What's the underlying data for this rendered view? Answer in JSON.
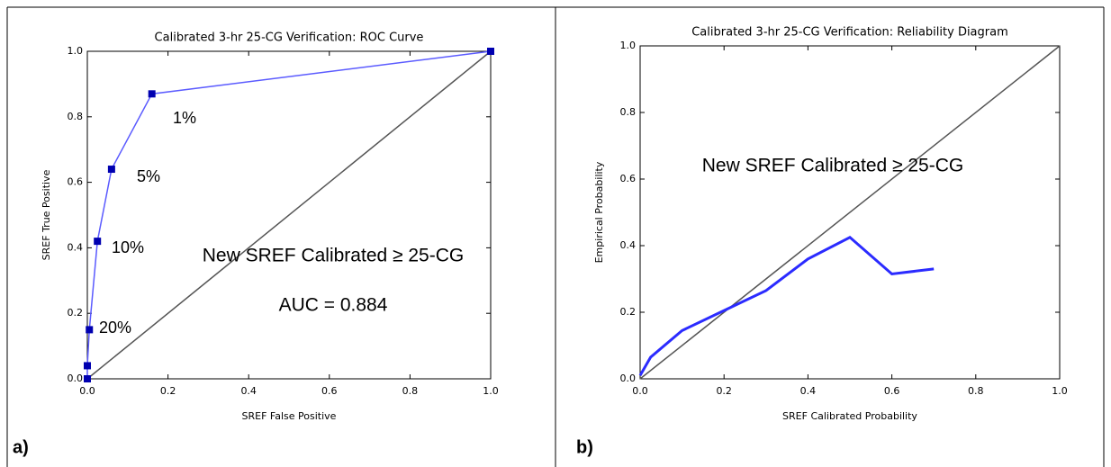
{
  "chart_data": [
    {
      "type": "line",
      "title": "Calibrated 3-hr 25-CG Verification: ROC Curve",
      "xlabel": "SREF False Positive",
      "ylabel": "SREF True Positive",
      "x": [
        0,
        0.0,
        0.005,
        0.025,
        0.06,
        0.16,
        1
      ],
      "values": [
        0,
        0.04,
        0.15,
        0.42,
        0.64,
        0.87,
        1
      ],
      "point_labels": [
        null,
        null,
        "20%",
        "10%",
        "5%",
        "1%",
        null
      ],
      "color": "#5b5bff",
      "marker_color": "#0000b0",
      "marker": "square",
      "diagonal": true,
      "xlim": [
        0,
        1
      ],
      "ylim": [
        0,
        1
      ],
      "xticks": [
        {
          "value": 0,
          "label": "0.0"
        },
        0.2,
        0.4,
        0.6,
        0.8,
        {
          "value": 1,
          "label": "1.0"
        }
      ],
      "yticks": [
        {
          "value": 0,
          "label": "0.0"
        },
        0.2,
        0.4,
        0.6,
        0.8,
        {
          "value": 1,
          "label": "1.0"
        }
      ],
      "annotations": [
        "New SREF Calibrated ≥ 25-CG",
        "AUC = 0.884"
      ],
      "panel_label": "a)"
    },
    {
      "type": "line",
      "title": "Calibrated 3-hr 25-CG Verification: Reliability Diagram",
      "xlabel": "SREF Calibrated Probability",
      "ylabel": "Empirical Probability",
      "x": [
        0,
        0.025,
        0.1,
        0.2,
        0.3,
        0.4,
        0.5,
        0.6,
        0.7
      ],
      "values": [
        0.01,
        0.065,
        0.145,
        0.205,
        0.265,
        0.36,
        0.425,
        0.315,
        0.33
      ],
      "color": "#2b2bff",
      "diagonal": true,
      "xlim": [
        0,
        1
      ],
      "ylim": [
        0,
        1
      ],
      "xticks": [
        {
          "value": 0,
          "label": "0.0"
        },
        0.2,
        0.4,
        0.6,
        0.8,
        {
          "value": 1,
          "label": "1.0"
        }
      ],
      "yticks": [
        {
          "value": 0,
          "label": "0.0"
        },
        0.2,
        0.4,
        0.6,
        0.8,
        {
          "value": 1,
          "label": "1.0"
        }
      ],
      "annotations": [
        "New SREF Calibrated ≥ 25-CG"
      ],
      "panel_label": "b)"
    }
  ]
}
